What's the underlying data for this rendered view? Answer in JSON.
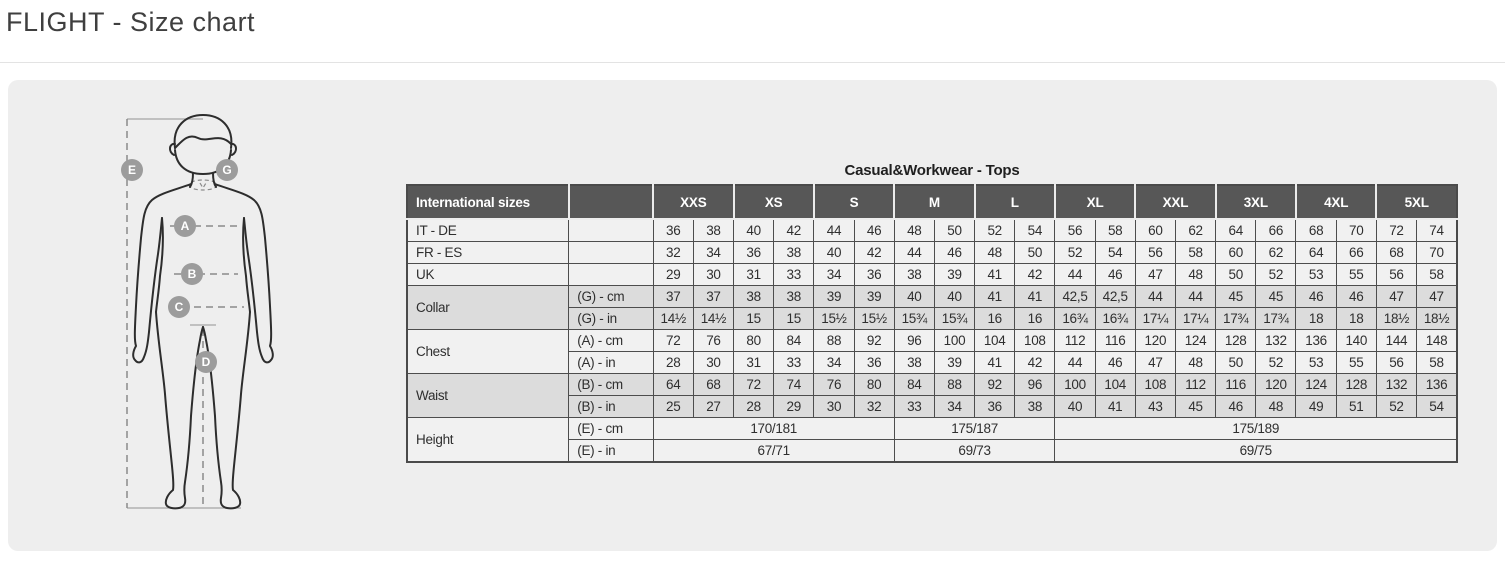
{
  "page": {
    "title": "FLIGHT - Size chart"
  },
  "diagram": {
    "description": "male-body-measurement-figure",
    "points": {
      "E": "E",
      "G": "G",
      "A": "A",
      "B": "B",
      "C": "C",
      "D": "D"
    }
  },
  "table": {
    "title": "Casual&Workwear - Tops",
    "corner_header": "International sizes",
    "sizes": [
      "XXS",
      "XS",
      "S",
      "M",
      "L",
      "XL",
      "XXL",
      "3XL",
      "4XL",
      "5XL"
    ],
    "groups": [
      {
        "type": "single",
        "label": "IT - DE",
        "shade": false,
        "values": [
          "36",
          "38",
          "40",
          "42",
          "44",
          "46",
          "48",
          "50",
          "52",
          "54",
          "56",
          "58",
          "60",
          "62",
          "64",
          "66",
          "68",
          "70",
          "72",
          "74"
        ]
      },
      {
        "type": "single",
        "label": "FR - ES",
        "shade": false,
        "values": [
          "32",
          "34",
          "36",
          "38",
          "40",
          "42",
          "44",
          "46",
          "48",
          "50",
          "52",
          "54",
          "56",
          "58",
          "60",
          "62",
          "64",
          "66",
          "68",
          "70"
        ]
      },
      {
        "type": "single",
        "label": "UK",
        "shade": false,
        "values": [
          "29",
          "30",
          "31",
          "33",
          "34",
          "36",
          "38",
          "39",
          "41",
          "42",
          "44",
          "46",
          "47",
          "48",
          "50",
          "52",
          "53",
          "55",
          "56",
          "58"
        ]
      },
      {
        "type": "double",
        "label": "Collar",
        "shade": true,
        "rows": [
          {
            "sublabel": "(G) - cm",
            "values": [
              "37",
              "37",
              "38",
              "38",
              "39",
              "39",
              "40",
              "40",
              "41",
              "41",
              "42,5",
              "42,5",
              "44",
              "44",
              "45",
              "45",
              "46",
              "46",
              "47",
              "47"
            ]
          },
          {
            "sublabel": "(G) - in",
            "values": [
              "14½",
              "14½",
              "15",
              "15",
              "15½",
              "15½",
              "15¾",
              "15¾",
              "16",
              "16",
              "16¾",
              "16¾",
              "17¼",
              "17¼",
              "17¾",
              "17¾",
              "18",
              "18",
              "18½",
              "18½"
            ]
          }
        ]
      },
      {
        "type": "double",
        "label": "Chest",
        "shade": false,
        "rows": [
          {
            "sublabel": "(A) - cm",
            "values": [
              "72",
              "76",
              "80",
              "84",
              "88",
              "92",
              "96",
              "100",
              "104",
              "108",
              "112",
              "116",
              "120",
              "124",
              "128",
              "132",
              "136",
              "140",
              "144",
              "148"
            ]
          },
          {
            "sublabel": "(A) - in",
            "values": [
              "28",
              "30",
              "31",
              "33",
              "34",
              "36",
              "38",
              "39",
              "41",
              "42",
              "44",
              "46",
              "47",
              "48",
              "50",
              "52",
              "53",
              "55",
              "56",
              "58"
            ]
          }
        ]
      },
      {
        "type": "double",
        "label": "Waist",
        "shade": true,
        "rows": [
          {
            "sublabel": "(B) - cm",
            "values": [
              "64",
              "68",
              "72",
              "74",
              "76",
              "80",
              "84",
              "88",
              "92",
              "96",
              "100",
              "104",
              "108",
              "112",
              "116",
              "120",
              "124",
              "128",
              "132",
              "136"
            ]
          },
          {
            "sublabel": "(B) - in",
            "values": [
              "25",
              "27",
              "28",
              "29",
              "30",
              "32",
              "33",
              "34",
              "36",
              "38",
              "40",
              "41",
              "43",
              "45",
              "46",
              "48",
              "49",
              "51",
              "52",
              "54"
            ]
          }
        ]
      },
      {
        "type": "double",
        "label": "Height",
        "shade": false,
        "rows": [
          {
            "sublabel": "(E) - cm",
            "spans": [
              {
                "text": "170/181",
                "cols": 6
              },
              {
                "text": "175/187",
                "cols": 4
              },
              {
                "text": "175/189",
                "cols": 10
              }
            ]
          },
          {
            "sublabel": "(E) - in",
            "spans": [
              {
                "text": "67/71",
                "cols": 6
              },
              {
                "text": "69/73",
                "cols": 4
              },
              {
                "text": "69/75",
                "cols": 10
              }
            ]
          }
        ]
      }
    ]
  }
}
